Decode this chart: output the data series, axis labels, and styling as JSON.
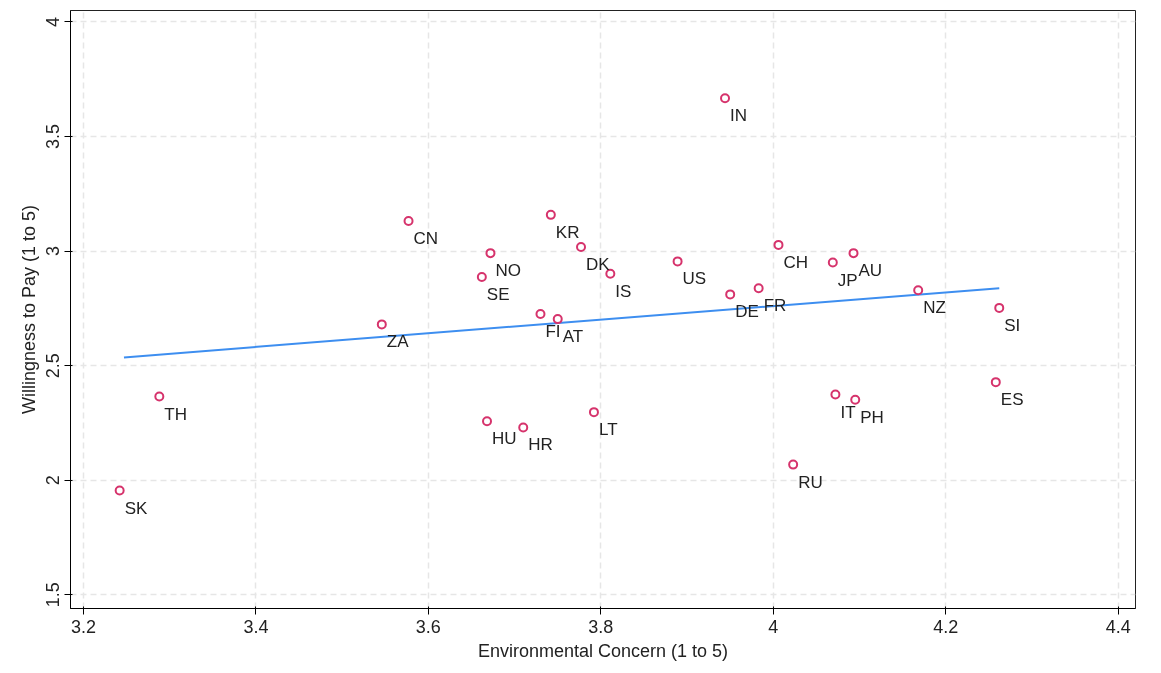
{
  "chart_data": {
    "type": "scatter",
    "xlabel": "Environmental Concern (1 to 5)",
    "ylabel": "Willingness to Pay (1 to 5)",
    "xlim": [
      3.185,
      4.42
    ],
    "ylim": [
      1.44,
      4.05
    ],
    "xticks": [
      3.2,
      3.4,
      3.6,
      3.8,
      {
        "value": 4,
        "label": "4"
      },
      4.2,
      4.4
    ],
    "yticks": [
      1.5,
      {
        "value": 2,
        "label": "2"
      },
      2.5,
      {
        "value": 3,
        "label": "3"
      },
      3.5,
      {
        "value": 4,
        "label": "4"
      }
    ],
    "grid": true,
    "series": [
      {
        "marker": "circle",
        "color": "#d6336c",
        "x": [
          3.944,
          3.577,
          3.742,
          3.777,
          3.811,
          3.672,
          3.662,
          3.889,
          4.006,
          4.069,
          4.093,
          3.95,
          3.983,
          4.168,
          4.262,
          3.546,
          3.73,
          3.75,
          3.288,
          3.668,
          3.71,
          3.792,
          4.072,
          4.095,
          4.258,
          4.023,
          3.242
        ],
        "values": [
          3.667,
          3.131,
          3.158,
          3.018,
          2.901,
          2.991,
          2.887,
          2.955,
          3.027,
          2.95,
          2.991,
          2.811,
          2.838,
          2.829,
          2.752,
          2.68,
          2.725,
          2.703,
          2.365,
          2.257,
          2.23,
          2.297,
          2.374,
          2.351,
          2.428,
          2.068,
          1.955
        ]
      },
      {
        "type": "line",
        "color": "#3d8ef0",
        "x": [
          3.247,
          4.262
        ],
        "values": [
          2.536,
          2.838
        ]
      }
    ],
    "annotations": [
      {
        "text": "IN",
        "x": 3.944,
        "y": 3.667
      },
      {
        "text": "CN",
        "x": 3.577,
        "y": 3.131
      },
      {
        "text": "KR",
        "x": 3.742,
        "y": 3.158
      },
      {
        "text": "DK",
        "x": 3.777,
        "y": 3.018
      },
      {
        "text": "IS",
        "x": 3.811,
        "y": 2.901
      },
      {
        "text": "NO",
        "x": 3.672,
        "y": 2.991
      },
      {
        "text": "SE",
        "x": 3.662,
        "y": 2.887
      },
      {
        "text": "US",
        "x": 3.889,
        "y": 2.955
      },
      {
        "text": "CH",
        "x": 4.006,
        "y": 3.027
      },
      {
        "text": "JP",
        "x": 4.069,
        "y": 2.95
      },
      {
        "text": "AU",
        "x": 4.093,
        "y": 2.991
      },
      {
        "text": "DE",
        "x": 3.95,
        "y": 2.811
      },
      {
        "text": "FR",
        "x": 3.983,
        "y": 2.838
      },
      {
        "text": "NZ",
        "x": 4.168,
        "y": 2.829
      },
      {
        "text": "SI",
        "x": 4.262,
        "y": 2.752
      },
      {
        "text": "ZA",
        "x": 3.546,
        "y": 2.68
      },
      {
        "text": "FI",
        "x": 3.73,
        "y": 2.725
      },
      {
        "text": "AT",
        "x": 3.75,
        "y": 2.703
      },
      {
        "text": "TH",
        "x": 3.288,
        "y": 2.365
      },
      {
        "text": "HU",
        "x": 3.668,
        "y": 2.257
      },
      {
        "text": "HR",
        "x": 3.71,
        "y": 2.23
      },
      {
        "text": "LT",
        "x": 3.792,
        "y": 2.297
      },
      {
        "text": "IT",
        "x": 4.072,
        "y": 2.374
      },
      {
        "text": "PH",
        "x": 4.095,
        "y": 2.351
      },
      {
        "text": "ES",
        "x": 4.258,
        "y": 2.428
      },
      {
        "text": "RU",
        "x": 4.023,
        "y": 2.068
      },
      {
        "text": "SK",
        "x": 3.242,
        "y": 1.955
      }
    ]
  }
}
